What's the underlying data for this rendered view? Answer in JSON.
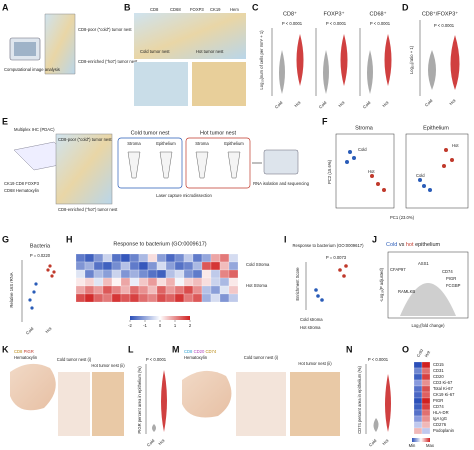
{
  "panels": {
    "A": {
      "letter": "A",
      "caption": "Computational image analysis",
      "cold": "CD8-poor (“cold”) tumor nest",
      "hot": "CD8-enriched (“hot”) tumor nest"
    },
    "B": {
      "letter": "B",
      "markers": [
        "CD8",
        "CD68",
        "FOXP3",
        "CK19",
        "Hem"
      ],
      "marker_colors": [
        "#d9a21b",
        "#c94040",
        "#b040b8",
        "#2a9fd0",
        "#6a86c4"
      ],
      "cold": "Cold tumor nest",
      "hot": "Hot tumor nest"
    },
    "C": {
      "letter": "C",
      "ylabel": "Log₁₀(num of cells per mm² + 1)",
      "plots": [
        {
          "title": "CD8⁺",
          "p": "P < 0.0001"
        },
        {
          "title": "FOXP3⁺",
          "p": "P < 0.0001"
        },
        {
          "title": "CD68⁺",
          "p": "P < 0.0001"
        }
      ],
      "groups": [
        "Cold",
        "Hot"
      ]
    },
    "D": {
      "letter": "D",
      "title": "CD8⁺/FOXP3⁺",
      "ylabel": "Log₁₀(ratio + 1)",
      "p": "P < 0.0001",
      "groups": [
        "Cold",
        "Hot"
      ]
    },
    "E": {
      "letter": "E",
      "ihc": "Multiplex IHC (PDAC)",
      "cold": "CD8-poor (“cold”) tumor nest",
      "hot": "CD8-enriched (“hot”) tumor nest",
      "stain1": "CK19 CD8 FOXP3",
      "stain2": "CD68 Hematoxylin",
      "cold_nest": "Cold tumor nest",
      "hot_nest": "Hot tumor nest",
      "compartments": [
        "Stroma",
        "Epithelium"
      ],
      "lcm": "Laser capture microdissection",
      "rna": "RNA isolation and sequencing"
    },
    "F": {
      "letter": "F",
      "plots": [
        "Stroma",
        "Epithelium"
      ],
      "xlabel": "PC1 (23.0%)",
      "ylabel": "PC2 (15.6%)",
      "groups": [
        "Cold",
        "Hot"
      ]
    },
    "G": {
      "letter": "G",
      "title": "Bacteria",
      "p": "P = 0.0220",
      "ylabel": "Relative 16S rRNA",
      "groups": [
        "Cold",
        "Hot"
      ]
    },
    "H": {
      "letter": "H",
      "title": "Response to bacterium (GO:0009617)",
      "row_groups": [
        "Cold Stroma",
        "Hot Stroma"
      ],
      "values": [
        [
          -1.5,
          -1.8,
          -1.2,
          -0.5,
          -1.6,
          -1.9,
          -1.4,
          -0.8,
          0.3,
          -1.1,
          -1.7,
          -1.3,
          -0.6,
          -1.5,
          -1.0,
          0.8,
          1.2,
          -0.4
        ],
        [
          -1.2,
          -0.9,
          -1.6,
          -1.8,
          -1.3,
          -0.7,
          -1.5,
          -1.9,
          -1.2,
          -0.4,
          -1.1,
          -1.6,
          -1.4,
          -0.8,
          1.5,
          1.8,
          0.6,
          -1.0
        ],
        [
          -0.3,
          -1.4,
          -0.8,
          -1.1,
          -0.5,
          -1.2,
          -0.9,
          -1.3,
          -1.6,
          -1.8,
          -0.7,
          -0.4,
          -1.2,
          -1.5,
          0.2,
          -0.6,
          1.1,
          1.4
        ],
        [
          0.2,
          0.4,
          -0.3,
          0.6,
          0.1,
          0.8,
          -0.2,
          0.5,
          0.9,
          0.3,
          0.7,
          -0.1,
          0.4,
          0.6,
          0.3,
          -0.5,
          -0.8,
          0.2
        ],
        [
          0.8,
          1.2,
          0.9,
          1.5,
          1.1,
          0.7,
          1.3,
          1.0,
          0.6,
          1.4,
          0.9,
          1.2,
          1.6,
          1.0,
          -0.7,
          -1.1,
          -0.3,
          0.5
        ],
        [
          1.6,
          1.9,
          1.4,
          1.2,
          1.8,
          1.5,
          1.7,
          1.3,
          1.1,
          1.6,
          1.4,
          1.8,
          1.2,
          1.5,
          -0.9,
          -0.4,
          -1.2,
          -0.6
        ]
      ],
      "clim": [
        -2,
        2
      ],
      "cticks": [
        -2,
        -1,
        0,
        1,
        2
      ],
      "colors": [
        "#2b4fb8",
        "#ffffff",
        "#d02020"
      ]
    },
    "I": {
      "letter": "I",
      "title": "Response to bacterium (GO:0009617)",
      "p": "P = 0.0073",
      "ylabel": "Enrichment Score",
      "rows": [
        "Cold stroma",
        "Hot stroma"
      ]
    },
    "J": {
      "letter": "J",
      "title_cold": "Cold",
      "title_vs": "vs",
      "title_hot": "hot",
      "title_tail": "epithelium",
      "ylabel": "-Log₁₀(P adjusted)",
      "xlabel": "Log₂(fold change)",
      "genes": [
        "CFAP97",
        "ASS1",
        "CD74",
        "PIGR",
        "FCGBP",
        "RAMLKB"
      ]
    },
    "K": {
      "letter": "K",
      "stain": [
        "CD8",
        "PIGR",
        "Hematoxylin"
      ],
      "cold": "Cold tumor nest (i)",
      "hot": "Hot tumor nest (ii)"
    },
    "L": {
      "letter": "L",
      "p": "P < 0.0001",
      "ylabel": "PIGR percent area in epithelium (%)",
      "groups": [
        "Cold",
        "Hot"
      ]
    },
    "M": {
      "letter": "M",
      "stain": [
        "CD8",
        "CD20",
        "CD74",
        "Hematoxylin"
      ],
      "cold": "Cold tumor nest (i)",
      "hot": "Hot tumor nest (ii)"
    },
    "N": {
      "letter": "N",
      "p": "P < 0.0001",
      "ylabel": "CD74 percent area in epithelium (%)",
      "groups": [
        "Cold",
        "Hot"
      ]
    },
    "O": {
      "letter": "O",
      "cols": [
        "Cold",
        "Hot"
      ],
      "rows": [
        "CD15",
        "CD31",
        "CD20",
        "CD3 Ki-67",
        "Total Ki-67",
        "CK19 Ki-67",
        "PIGR",
        "CD74",
        "HLA-DR",
        "IgA IgG",
        "CD276",
        "Podoplanin"
      ],
      "legend": [
        "Min",
        "Max"
      ]
    }
  }
}
